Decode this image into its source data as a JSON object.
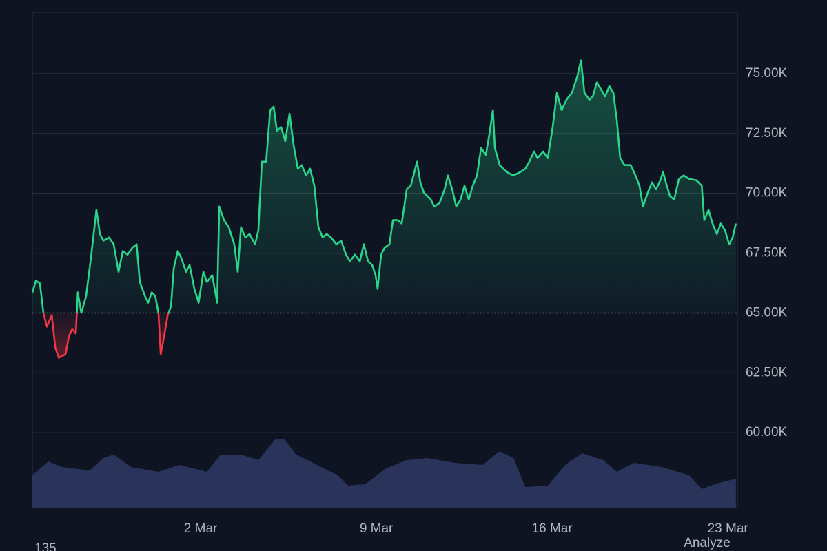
{
  "chart_data": {
    "type": "baseline",
    "baseline": 65000,
    "up_color": "#2ad48a",
    "down_color": "#f23645",
    "grid": true,
    "x": [
      -4.7,
      -4.56,
      -4.4,
      -4.26,
      -4.12,
      -3.93,
      -3.79,
      -3.65,
      -3.38,
      -3.25,
      -3.11,
      -2.97,
      -2.89,
      -2.75,
      -2.56,
      -2.37,
      -2.15,
      -2.01,
      -1.87,
      -1.65,
      -1.46,
      -1.27,
      -1.1,
      -0.91,
      -0.72,
      -0.55,
      -0.42,
      -0.22,
      -0.09,
      0.05,
      0.19,
      0.32,
      0.41,
      0.54,
      0.68,
      0.82,
      0.93,
      1.09,
      1.23,
      1.42,
      1.56,
      1.75,
      1.92,
      2.11,
      2.25,
      2.46,
      2.66,
      2.74,
      2.93,
      3.12,
      3.34,
      3.48,
      3.61,
      3.78,
      3.95,
      4.17,
      4.3,
      4.44,
      4.61,
      4.77,
      4.91,
      5.04,
      5.21,
      5.37,
      5.54,
      5.7,
      5.87,
      6.03,
      6.2,
      6.36,
      6.53,
      6.69,
      6.86,
      7.02,
      7.19,
      7.41,
      7.6,
      7.79,
      7.95,
      8.15,
      8.34,
      8.5,
      8.67,
      8.83,
      8.97,
      9.05,
      9.19,
      9.33,
      9.52,
      9.66,
      9.85,
      10.01,
      10.21,
      10.37,
      10.48,
      10.62,
      10.75,
      10.89,
      11.03,
      11.17,
      11.3,
      11.52,
      11.72,
      11.85,
      12.02,
      12.18,
      12.35,
      12.51,
      12.68,
      12.84,
      13.01,
      13.17,
      13.36,
      13.5,
      13.64,
      13.72,
      13.91,
      14.19,
      14.46,
      14.73,
      14.93,
      15.09,
      15.28,
      15.42,
      15.64,
      15.83,
      16.02,
      16.19,
      16.38,
      16.57,
      16.79,
      17.01,
      17.15,
      17.29,
      17.48,
      17.62,
      17.78,
      17.95,
      18.11,
      18.28,
      18.44,
      18.58,
      18.71,
      18.88,
      19.13,
      19.32,
      19.48,
      19.62,
      19.81,
      19.98,
      20.14,
      20.31,
      20.42,
      20.53,
      20.69,
      20.86,
      21.05,
      21.24,
      21.46,
      21.74,
      21.96,
      22.06,
      22.23,
      22.39,
      22.56,
      22.72,
      22.89,
      23.05,
      23.19,
      23.32
    ],
    "values": [
      65860,
      66350,
      66240,
      65000,
      64430,
      64910,
      63560,
      63130,
      63280,
      64000,
      64340,
      64140,
      65860,
      65000,
      65720,
      67300,
      69310,
      68300,
      68020,
      68160,
      67870,
      66720,
      67590,
      67440,
      67730,
      67870,
      66290,
      65720,
      65430,
      65860,
      65720,
      65000,
      63280,
      64000,
      64860,
      65290,
      66870,
      67590,
      67300,
      66720,
      67010,
      66010,
      65430,
      66720,
      66290,
      66580,
      65430,
      69450,
      68880,
      68590,
      67870,
      66720,
      68590,
      68160,
      68300,
      67870,
      68450,
      71320,
      71320,
      73480,
      73620,
      72620,
      72760,
      72180,
      73330,
      72040,
      71030,
      71180,
      70750,
      71030,
      70320,
      68590,
      68160,
      68300,
      68160,
      67870,
      68020,
      67440,
      67160,
      67440,
      67160,
      67870,
      67160,
      67010,
      66580,
      66010,
      67440,
      67730,
      67870,
      68880,
      68880,
      68740,
      70170,
      70320,
      70750,
      71320,
      70460,
      70030,
      69890,
      69740,
      69450,
      69600,
      70170,
      70750,
      70170,
      69450,
      69740,
      70320,
      69740,
      70320,
      70750,
      71900,
      71610,
      72470,
      73480,
      71900,
      71180,
      70890,
      70750,
      70890,
      71030,
      71320,
      71750,
      71470,
      71750,
      71470,
      72760,
      74200,
      73480,
      73910,
      74200,
      74910,
      75550,
      74200,
      73910,
      74050,
      74630,
      74340,
      74050,
      74480,
      74200,
      73050,
      71470,
      71180,
      71180,
      70750,
      70320,
      69450,
      70030,
      70460,
      70170,
      70550,
      70890,
      70460,
      69890,
      69740,
      70600,
      70750,
      70600,
      70550,
      70320,
      68880,
      69310,
      68740,
      68300,
      68740,
      68450,
      67870,
      68160,
      68740
    ],
    "xlim": [
      -4.7,
      23.38
    ],
    "xticks": [
      {
        "value": 2,
        "label": "2 Mar"
      },
      {
        "value": 9,
        "label": "9 Mar"
      },
      {
        "value": 16,
        "label": "16 Mar"
      },
      {
        "value": 23,
        "label": "23 Mar"
      }
    ],
    "ylim": [
      56870,
      77560
    ],
    "yticks": [
      {
        "value": 60000,
        "label": "60.00K"
      },
      {
        "value": 62500,
        "label": "62.50K"
      },
      {
        "value": 65000,
        "label": "65.00K"
      },
      {
        "value": 67500,
        "label": "67.50K"
      },
      {
        "value": 70000,
        "label": "70.00K"
      },
      {
        "value": 72500,
        "label": "72.50K"
      },
      {
        "value": 75000,
        "label": "75.00K"
      }
    ],
    "volume": {
      "color": "#2d3762",
      "vlim": [
        0,
        100
      ],
      "x": [
        -4.7,
        -4.07,
        -3.52,
        -2.42,
        -1.87,
        -1.46,
        -0.77,
        0.32,
        1.15,
        2.25,
        2.8,
        3.61,
        4.3,
        4.99,
        5.32,
        5.81,
        6.64,
        7.46,
        7.87,
        8.56,
        9.38,
        10.21,
        11.03,
        12.13,
        13.23,
        13.91,
        14.46,
        14.93,
        15.83,
        16.52,
        17.2,
        18.03,
        18.58,
        19.26,
        20.36,
        21.46,
        21.96,
        22.56,
        23.32
      ],
      "values": [
        47,
        67,
        59,
        54,
        72,
        77,
        59,
        52,
        62,
        52,
        77,
        77,
        69,
        100,
        100,
        77,
        62,
        47,
        32,
        34,
        57,
        69,
        72,
        65,
        62,
        82,
        72,
        30,
        32,
        62,
        79,
        69,
        52,
        65,
        59,
        47,
        27,
        35,
        42
      ]
    },
    "footer_texts": [
      "135",
      "Analyze"
    ]
  }
}
